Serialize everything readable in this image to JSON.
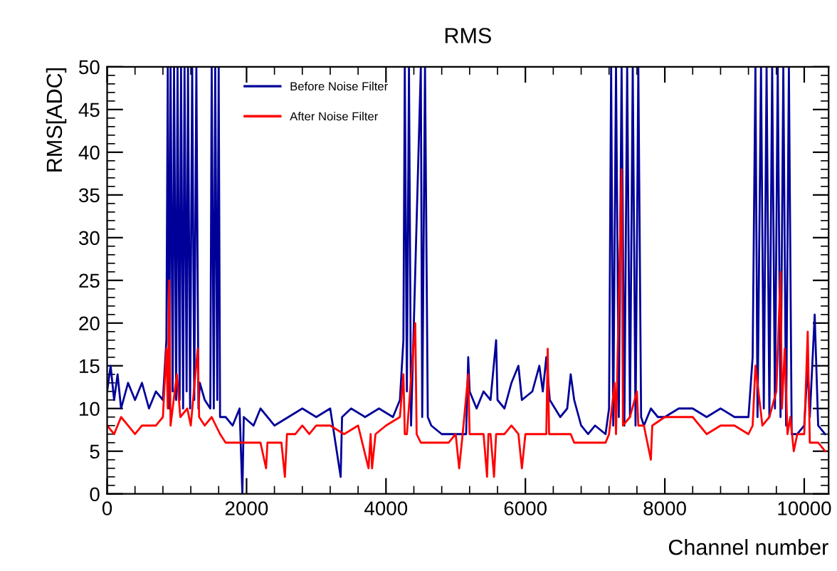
{
  "chart_data": {
    "type": "line",
    "title": "RMS",
    "xlabel": "Channel number",
    "ylabel": "RMS[ADC]",
    "xlim": [
      0,
      10350
    ],
    "ylim": [
      0,
      50
    ],
    "xticks": [
      0,
      2000,
      4000,
      6000,
      8000,
      10000
    ],
    "yticks": [
      0,
      5,
      10,
      15,
      20,
      25,
      30,
      35,
      40,
      45,
      50
    ],
    "grid": false,
    "legend": "top",
    "marker": "none",
    "line_style": "solid",
    "series": [
      {
        "name": "Before Noise Filter",
        "color": "#000099",
        "x": [
          0,
          50,
          100,
          150,
          200,
          300,
          400,
          500,
          600,
          700,
          800,
          850,
          870,
          890,
          910,
          940,
          960,
          990,
          1010,
          1040,
          1060,
          1090,
          1110,
          1140,
          1160,
          1190,
          1220,
          1250,
          1280,
          1310,
          1330,
          1400,
          1480,
          1500,
          1530,
          1550,
          1580,
          1600,
          1620,
          1700,
          1800,
          1900,
          1940,
          1960,
          2100,
          2200,
          2400,
          2600,
          2800,
          3000,
          3200,
          3350,
          3370,
          3500,
          3700,
          3900,
          4100,
          4200,
          4250,
          4270,
          4300,
          4330,
          4360,
          4500,
          4520,
          4560,
          4600,
          4650,
          4800,
          5000,
          5150,
          5180,
          5200,
          5300,
          5400,
          5500,
          5580,
          5600,
          5700,
          5800,
          5900,
          5950,
          6100,
          6200,
          6250,
          6300,
          6350,
          6500,
          6600,
          6650,
          6700,
          6800,
          6900,
          7000,
          7150,
          7200,
          7230,
          7260,
          7300,
          7340,
          7380,
          7420,
          7460,
          7500,
          7540,
          7580,
          7620,
          7660,
          7700,
          7800,
          7900,
          8000,
          8200,
          8400,
          8600,
          8800,
          9000,
          9200,
          9260,
          9300,
          9330,
          9380,
          9420,
          9460,
          9500,
          9540,
          9580,
          9620,
          9660,
          9700,
          9740,
          9780,
          9820,
          9900,
          10000,
          10050,
          10080,
          10150,
          10200,
          10300
        ],
        "values": [
          12,
          15,
          11,
          14,
          10,
          13,
          11,
          13,
          10,
          12,
          11,
          18,
          50,
          10,
          50,
          12,
          50,
          11,
          50,
          11,
          50,
          10,
          50,
          12,
          50,
          10,
          50,
          11,
          50,
          10,
          13,
          11,
          10,
          50,
          10,
          50,
          11,
          50,
          9,
          9,
          8,
          10,
          0,
          9,
          8,
          10,
          8,
          9,
          10,
          9,
          10,
          2,
          9,
          10,
          9,
          10,
          9,
          11,
          18,
          50,
          12,
          50,
          8,
          50,
          9,
          50,
          9,
          8,
          7,
          7,
          7,
          16,
          12,
          10,
          12,
          11,
          18,
          11,
          10,
          13,
          15,
          11,
          12,
          15,
          12,
          16,
          11,
          9,
          10,
          14,
          11,
          8,
          7,
          8,
          7,
          10,
          50,
          8,
          50,
          9,
          50,
          8,
          50,
          9,
          50,
          8,
          50,
          9,
          8,
          10,
          9,
          9,
          10,
          10,
          9,
          10,
          9,
          9,
          16,
          50,
          9,
          50,
          10,
          50,
          9,
          50,
          10,
          50,
          9,
          50,
          8,
          50,
          7,
          7,
          8,
          15,
          9,
          21,
          8,
          7
        ]
      },
      {
        "name": "After Noise Filter",
        "color": "#ff0000",
        "x": [
          0,
          100,
          200,
          300,
          400,
          500,
          600,
          700,
          800,
          850,
          870,
          890,
          910,
          1000,
          1050,
          1150,
          1200,
          1300,
          1320,
          1400,
          1500,
          1560,
          1620,
          1700,
          1800,
          2000,
          2200,
          2280,
          2300,
          2500,
          2550,
          2580,
          2700,
          2800,
          2900,
          3000,
          3200,
          3400,
          3600,
          3750,
          3780,
          3800,
          3850,
          4000,
          4200,
          4250,
          4270,
          4300,
          4420,
          4440,
          4500,
          4700,
          4800,
          4900,
          5000,
          5050,
          5100,
          5180,
          5200,
          5300,
          5400,
          5450,
          5470,
          5500,
          5550,
          5580,
          5700,
          5800,
          5900,
          5950,
          6000,
          6200,
          6300,
          6320,
          6340,
          6500,
          6650,
          6700,
          6800,
          6900,
          7000,
          7150,
          7200,
          7280,
          7300,
          7380,
          7400,
          7500,
          7600,
          7620,
          7700,
          7800,
          7820,
          8000,
          8200,
          8400,
          8600,
          8800,
          9000,
          9200,
          9260,
          9300,
          9400,
          9500,
          9600,
          9660,
          9680,
          9720,
          9760,
          9800,
          9850,
          9900,
          10000,
          10050,
          10080,
          10200,
          10300
        ],
        "values": [
          8,
          7,
          9,
          8,
          7,
          8,
          8,
          8,
          9,
          17,
          10,
          25,
          8,
          14,
          9,
          10,
          8,
          17,
          9,
          8,
          9,
          8,
          7,
          6,
          6,
          6,
          6,
          3,
          6,
          6,
          2,
          7,
          7,
          8,
          7,
          8,
          8,
          7,
          8,
          3,
          7,
          3,
          7,
          8,
          9,
          14,
          7,
          7,
          20,
          7,
          6,
          6,
          6,
          6,
          7,
          3,
          7,
          14,
          7,
          7,
          7,
          2,
          7,
          7,
          2,
          7,
          7,
          8,
          7,
          3,
          7,
          7,
          7,
          17,
          7,
          7,
          7,
          6,
          6,
          6,
          6,
          6,
          7,
          13,
          7,
          38,
          8,
          9,
          12,
          8,
          8,
          4,
          8,
          9,
          9,
          9,
          7,
          8,
          8,
          7,
          8,
          15,
          8,
          9,
          12,
          26,
          10,
          17,
          7,
          9,
          5,
          7,
          7,
          19,
          6,
          6,
          5
        ]
      }
    ]
  }
}
